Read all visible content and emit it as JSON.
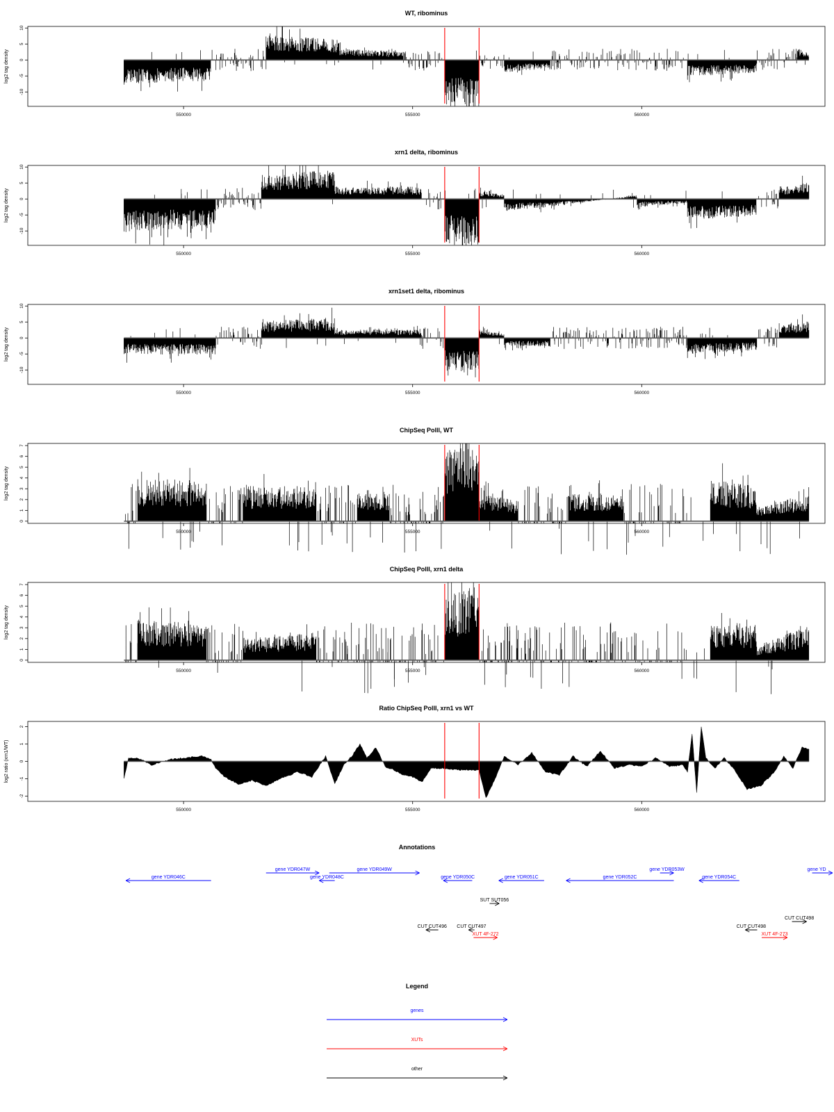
{
  "chart_data": [
    {
      "type": "bar",
      "title": "WT, ribominus",
      "ylabel": "log2 tag density",
      "ylim": [
        -14.5,
        10.5
      ],
      "yticks": [
        10,
        5,
        0,
        -5,
        -10
      ],
      "xlim": [
        546600,
        564000
      ],
      "xticks": [
        550000,
        555000,
        560000
      ],
      "xtick_labels": [
        "550000",
        "555000",
        "560000"
      ],
      "red_lines_x": [
        555700,
        556450
      ],
      "series": [
        {
          "x": [
            548700,
            550600
          ],
          "values": [
            -6,
            -5
          ]
        },
        {
          "x": [
            550600,
            551800
          ],
          "values": [
            -1,
            1
          ]
        },
        {
          "x": [
            551800,
            553400
          ],
          "values": [
            6,
            5
          ]
        },
        {
          "x": [
            553400,
            554800
          ],
          "values": [
            3,
            2
          ]
        },
        {
          "x": [
            554800,
            555700
          ],
          "values": [
            -1,
            1
          ]
        },
        {
          "x": [
            555700,
            556450
          ],
          "values": [
            -11,
            -12
          ]
        },
        {
          "x": [
            556450,
            557000
          ],
          "values": [
            -1,
            1
          ]
        },
        {
          "x": [
            557000,
            558000
          ],
          "values": [
            -3,
            -2
          ]
        },
        {
          "x": [
            558000,
            559900
          ],
          "values": [
            -1,
            1
          ]
        },
        {
          "x": [
            559900,
            561000
          ],
          "values": [
            -1,
            1
          ]
        },
        {
          "x": [
            561000,
            562500
          ],
          "values": [
            -4,
            -3
          ]
        },
        {
          "x": [
            562500,
            563400
          ],
          "values": [
            -1,
            1
          ]
        },
        {
          "x": [
            563400,
            563650
          ],
          "values": [
            3,
            2
          ]
        }
      ]
    },
    {
      "type": "bar",
      "title": "xrn1 delta, ribominus",
      "ylabel": "log2 tag density",
      "ylim": [
        -14.5,
        10.5
      ],
      "yticks": [
        10,
        5,
        0,
        -5,
        -10
      ],
      "xlim": [
        546600,
        564000
      ],
      "xticks": [
        550000,
        555000,
        560000
      ],
      "xtick_labels": [
        "550000",
        "555000",
        "560000"
      ],
      "red_lines_x": [
        555700,
        556450
      ],
      "series": [
        {
          "x": [
            548700,
            550700
          ],
          "values": [
            -8,
            -7
          ]
        },
        {
          "x": [
            550700,
            551700
          ],
          "values": [
            -1,
            1
          ]
        },
        {
          "x": [
            551700,
            553300
          ],
          "values": [
            6,
            7
          ]
        },
        {
          "x": [
            553300,
            555200
          ],
          "values": [
            3,
            3
          ]
        },
        {
          "x": [
            555200,
            555700
          ],
          "values": [
            -1,
            1
          ]
        },
        {
          "x": [
            555700,
            556450
          ],
          "values": [
            -11,
            -12
          ]
        },
        {
          "x": [
            556450,
            557000
          ],
          "values": [
            2,
            1
          ]
        },
        {
          "x": [
            557000,
            558000
          ],
          "values": [
            -3,
            -2
          ]
        },
        {
          "x": [
            558000,
            559900
          ],
          "values": [
            -2,
            1
          ]
        },
        {
          "x": [
            559900,
            561000
          ],
          "values": [
            -2,
            -1
          ]
        },
        {
          "x": [
            561000,
            562500
          ],
          "values": [
            -5,
            -4
          ]
        },
        {
          "x": [
            562500,
            563000
          ],
          "values": [
            -1,
            1
          ]
        },
        {
          "x": [
            563000,
            563650
          ],
          "values": [
            3,
            4
          ]
        }
      ]
    },
    {
      "type": "bar",
      "title": "xrn1set1 delta, ribominus",
      "ylabel": "log2 tag density",
      "ylim": [
        -14.5,
        10.5
      ],
      "yticks": [
        10,
        5,
        0,
        -5,
        -10
      ],
      "xlim": [
        546600,
        564000
      ],
      "xticks": [
        550000,
        555000,
        560000
      ],
      "xtick_labels": [
        "550000",
        "555000",
        "560000"
      ],
      "red_lines_x": [
        555700,
        556450
      ],
      "series": [
        {
          "x": [
            548700,
            550700
          ],
          "values": [
            -4,
            -4
          ]
        },
        {
          "x": [
            550700,
            551700
          ],
          "values": [
            -1,
            1
          ]
        },
        {
          "x": [
            551700,
            553300
          ],
          "values": [
            4,
            5
          ]
        },
        {
          "x": [
            553300,
            555200
          ],
          "values": [
            2,
            2
          ]
        },
        {
          "x": [
            555200,
            555700
          ],
          "values": [
            -1,
            1
          ]
        },
        {
          "x": [
            555700,
            556450
          ],
          "values": [
            -8,
            -9
          ]
        },
        {
          "x": [
            556450,
            557000
          ],
          "values": [
            2,
            1
          ]
        },
        {
          "x": [
            557000,
            558000
          ],
          "values": [
            -2,
            -2
          ]
        },
        {
          "x": [
            558000,
            559900
          ],
          "values": [
            -1,
            1
          ]
        },
        {
          "x": [
            559900,
            561000
          ],
          "values": [
            -1,
            1
          ]
        },
        {
          "x": [
            561000,
            562500
          ],
          "values": [
            -4,
            -3
          ]
        },
        {
          "x": [
            562500,
            563000
          ],
          "values": [
            -1,
            1
          ]
        },
        {
          "x": [
            563000,
            563650
          ],
          "values": [
            3,
            4
          ]
        }
      ]
    },
    {
      "type": "bar",
      "title": "ChipSeq PolII, WT",
      "ylabel": "log2 tag density",
      "ylim": [
        -0.2,
        7.2
      ],
      "yticks": [
        0,
        1,
        2,
        3,
        4,
        5,
        6,
        7
      ],
      "xlim": [
        546600,
        564000
      ],
      "xticks": [
        550000,
        555000,
        560000
      ],
      "xtick_labels": [
        "550000",
        "555000",
        "560000"
      ],
      "red_lines_x": [
        555700,
        556450
      ],
      "series": [
        {
          "x": [
            548700,
            549000
          ],
          "values": [
            1,
            1
          ]
        },
        {
          "x": [
            549000,
            550500
          ],
          "values": [
            3,
            3
          ]
        },
        {
          "x": [
            550500,
            551300
          ],
          "values": [
            1,
            1
          ]
        },
        {
          "x": [
            551300,
            552900
          ],
          "values": [
            2.5,
            2.5
          ]
        },
        {
          "x": [
            552900,
            553800
          ],
          "values": [
            1,
            1
          ]
        },
        {
          "x": [
            553800,
            554500
          ],
          "values": [
            2,
            2
          ]
        },
        {
          "x": [
            554500,
            555200
          ],
          "values": [
            1,
            1
          ]
        },
        {
          "x": [
            555200,
            555700
          ],
          "values": [
            1.5,
            1.5
          ]
        },
        {
          "x": [
            555700,
            556450
          ],
          "values": [
            5,
            6.5
          ]
        },
        {
          "x": [
            556450,
            557300
          ],
          "values": [
            2,
            1.5
          ]
        },
        {
          "x": [
            557300,
            558400
          ],
          "values": [
            1,
            1
          ]
        },
        {
          "x": [
            558400,
            559600
          ],
          "values": [
            2,
            2
          ]
        },
        {
          "x": [
            559600,
            561000
          ],
          "values": [
            1.5,
            1.5
          ]
        },
        {
          "x": [
            561500,
            562500
          ],
          "values": [
            3,
            2.5
          ]
        },
        {
          "x": [
            562500,
            563650
          ],
          "values": [
            1,
            2
          ]
        }
      ]
    },
    {
      "type": "bar",
      "title": "ChipSeq PolII, xrn1 delta",
      "ylabel": "log2 tag density",
      "ylim": [
        -0.2,
        7.2
      ],
      "yticks": [
        0,
        1,
        2,
        3,
        4,
        5,
        6,
        7
      ],
      "xlim": [
        546600,
        564000
      ],
      "xticks": [
        550000,
        555000,
        560000
      ],
      "xtick_labels": [
        "550000",
        "555000",
        "560000"
      ],
      "red_lines_x": [
        555700,
        556450
      ],
      "series": [
        {
          "x": [
            548700,
            549000
          ],
          "values": [
            1,
            1
          ]
        },
        {
          "x": [
            549000,
            550500
          ],
          "values": [
            3,
            2.5
          ]
        },
        {
          "x": [
            550500,
            551300
          ],
          "values": [
            0.5,
            0.5
          ]
        },
        {
          "x": [
            551300,
            552900
          ],
          "values": [
            1.5,
            2
          ]
        },
        {
          "x": [
            552900,
            553800
          ],
          "values": [
            1,
            1
          ]
        },
        {
          "x": [
            553800,
            554500
          ],
          "values": [
            1.5,
            1.5
          ]
        },
        {
          "x": [
            554500,
            555200
          ],
          "values": [
            1,
            1
          ]
        },
        {
          "x": [
            555200,
            555700
          ],
          "values": [
            1,
            1
          ]
        },
        {
          "x": [
            555700,
            556450
          ],
          "values": [
            4.5,
            5.5
          ]
        },
        {
          "x": [
            556450,
            557300
          ],
          "values": [
            1.5,
            1.5
          ]
        },
        {
          "x": [
            557300,
            558400
          ],
          "values": [
            1,
            1
          ]
        },
        {
          "x": [
            558400,
            559600
          ],
          "values": [
            1.5,
            1.5
          ]
        },
        {
          "x": [
            559600,
            561000
          ],
          "values": [
            1.2,
            1.2
          ]
        },
        {
          "x": [
            561500,
            562500
          ],
          "values": [
            2.5,
            2.5
          ]
        },
        {
          "x": [
            562500,
            563650
          ],
          "values": [
            1,
            2.5
          ]
        }
      ]
    },
    {
      "type": "area",
      "title": "Ratio ChipSeq PolII, xrn1 vs WT",
      "ylabel": "log2 ratio (xrn1/WT)",
      "ylim": [
        -2.3,
        2.3
      ],
      "yticks": [
        2,
        1,
        0,
        -1,
        -2
      ],
      "xlim": [
        546600,
        564000
      ],
      "xticks": [
        550000,
        555000,
        560000
      ],
      "xtick_labels": [
        "550000",
        "555000",
        "560000"
      ],
      "red_lines_x": [
        555700,
        556450
      ],
      "series": [
        {
          "name": "",
          "x": [
            548700,
            548800,
            549000,
            549300,
            549700,
            550000,
            550400,
            550600,
            550700,
            550900,
            551200,
            551500,
            551800,
            552100,
            552500,
            552800,
            553100,
            553300,
            553500,
            553700,
            553850,
            554000,
            554200,
            554400,
            554600,
            554800,
            555000,
            555200,
            555400,
            555700,
            556000,
            556450,
            556600,
            556800,
            557000,
            557300,
            557600,
            557900,
            558200,
            558500,
            558800,
            559100,
            559400,
            559700,
            560000,
            560300,
            560600,
            560900,
            561000,
            561100,
            561200,
            561300,
            561400,
            561600,
            561800,
            562000,
            562300,
            562600,
            562900,
            563100,
            563300,
            563500,
            563650
          ],
          "values": [
            -1,
            0.2,
            0.2,
            -0.2,
            0.1,
            0.2,
            0.3,
            0.1,
            -0.4,
            -0.9,
            -1.3,
            -1.1,
            -1.4,
            -1.0,
            -0.6,
            -0.9,
            0.3,
            -1.3,
            -0.2,
            0.4,
            1.0,
            0.2,
            0.8,
            -0.3,
            -0.5,
            -0.8,
            -0.9,
            -1.2,
            -0.4,
            -0.4,
            -0.5,
            -0.5,
            -2.1,
            -1.0,
            0.3,
            -0.2,
            0.5,
            -0.6,
            -0.8,
            0.3,
            -0.3,
            0.6,
            -0.4,
            -0.2,
            -0.3,
            0.2,
            -0.3,
            -0.2,
            -0.6,
            1.6,
            -1.8,
            2.0,
            0.2,
            -0.4,
            0.2,
            -0.4,
            -1.6,
            -1.4,
            -0.6,
            0.3,
            -0.4,
            0.8,
            0.7
          ]
        }
      ]
    }
  ],
  "annotations": {
    "title": "Annotations",
    "items": [
      {
        "label": "gene YDR046C",
        "color": "#0000ff",
        "x1": 550600,
        "x2": 548740,
        "row": 2
      },
      {
        "label": "gene YDR047W",
        "color": "#0000ff",
        "x1": 551800,
        "x2": 552960,
        "row": 1
      },
      {
        "label": "gene YDR048C",
        "color": "#0000ff",
        "x1": 553300,
        "x2": 552960,
        "row": 2
      },
      {
        "label": "gene YDR049W",
        "color": "#0000ff",
        "x1": 553180,
        "x2": 555150,
        "row": 1
      },
      {
        "label": "gene YDR050C",
        "color": "#0000ff",
        "x1": 556300,
        "x2": 555670,
        "row": 2
      },
      {
        "label": "gene YDR051C",
        "color": "#0000ff",
        "x1": 557870,
        "x2": 556880,
        "row": 2
      },
      {
        "label": "gene YDR052C",
        "color": "#0000ff",
        "x1": 560700,
        "x2": 558350,
        "row": 2
      },
      {
        "label": "gene YDR053W",
        "color": "#0000ff",
        "x1": 560400,
        "x2": 560700,
        "row": 1
      },
      {
        "label": "gene YDR054C",
        "color": "#0000ff",
        "x1": 562130,
        "x2": 561250,
        "row": 2
      },
      {
        "label": "gene YD",
        "color": "#0000ff",
        "x1": 563720,
        "x2": 564340,
        "row": 1
      },
      {
        "label": "SUT SUT056",
        "color": "#000000",
        "x1": 556680,
        "x2": 556890,
        "row": 4
      },
      {
        "label": "CUT CUT498",
        "color": "#000000",
        "x1": 563280,
        "x2": 563600,
        "row": 5
      },
      {
        "label": "CUT CUT496",
        "color": "#000000",
        "x1": 555560,
        "x2": 555290,
        "row": 6
      },
      {
        "label": "CUT CUT497",
        "color": "#000000",
        "x1": 556350,
        "x2": 556220,
        "row": 6
      },
      {
        "label": "CUT CUT498",
        "color": "#000000",
        "x1": 562520,
        "x2": 562260,
        "row": 6
      },
      {
        "label": "XUT 4F-272",
        "color": "#ff0000",
        "x1": 556330,
        "x2": 556850,
        "row": 7
      },
      {
        "label": "XUT 4F-273",
        "color": "#ff0000",
        "x1": 562620,
        "x2": 563180,
        "row": 7
      }
    ]
  },
  "legend": {
    "title": "Legend",
    "items": [
      {
        "label": "genes",
        "color": "#0000ff"
      },
      {
        "label": "XUTs",
        "color": "#ff0000"
      },
      {
        "label": "other",
        "color": "#000000"
      }
    ]
  }
}
